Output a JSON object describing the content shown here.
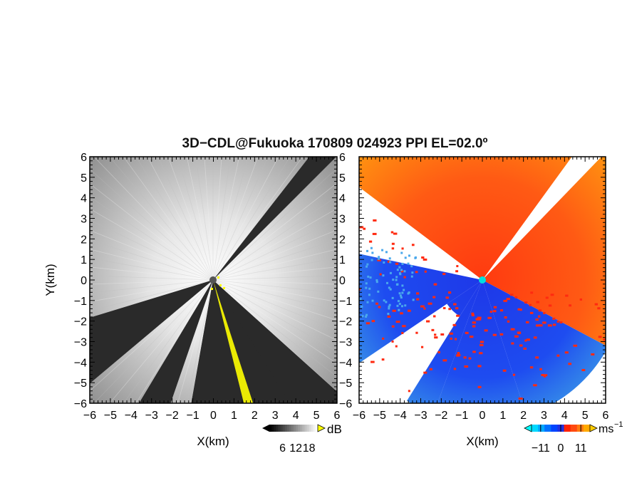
{
  "title": "3D−CDL@Fukuoka 170809 024923 PPI EL=02.0º",
  "chart_data": [
    {
      "type": "heatmap",
      "name": "reflectivity-ppi",
      "xlabel": "X(km)",
      "ylabel": "Y(km)",
      "xlim": [
        -6,
        6
      ],
      "ylim": [
        -6,
        6
      ],
      "xticks": [
        "−6",
        "−5",
        "−4",
        "−3",
        "−2",
        "−1",
        "0",
        "1",
        "2",
        "3",
        "4",
        "5",
        "6"
      ],
      "yticks": [
        "−6",
        "−5",
        "−4",
        "−3",
        "−2",
        "−1",
        "0",
        "1",
        "2",
        "3",
        "4",
        "5",
        "6"
      ],
      "colorbar": {
        "unit": "dB",
        "tick_labels": [
          "6",
          "12",
          "18"
        ],
        "tick_values": [
          6,
          12,
          18
        ],
        "range": [
          0,
          22
        ],
        "colors": [
          "#000000",
          "#ffffff",
          "#ffff00"
        ]
      },
      "radar_site": [
        0,
        0
      ],
      "blocked_sectors_deg": [
        [
          38,
          45
        ],
        [
          132,
          155
        ],
        [
          158,
          167
        ],
        [
          199,
          211
        ],
        [
          230,
          253
        ]
      ],
      "highlight_sector_deg": [
        [
          165,
          187
        ]
      ],
      "colors": {
        "background": "#d0d0d0",
        "blocked": "#2a2a2a",
        "highlight": "#ffff00",
        "site": "#555555"
      }
    },
    {
      "type": "heatmap",
      "name": "doppler-velocity-ppi",
      "xlabel": "X(km)",
      "ylabel": "Y(km)",
      "xlim": [
        -6,
        6
      ],
      "ylim": [
        -6,
        6
      ],
      "xticks": [
        "−6",
        "−5",
        "−4",
        "−3",
        "−2",
        "−1",
        "0",
        "1",
        "2",
        "3",
        "4",
        "5",
        "6"
      ],
      "yticks": [
        "−6",
        "−5",
        "−4",
        "−3",
        "−2",
        "−1",
        "0",
        "1",
        "2",
        "3",
        "4",
        "5",
        "6"
      ],
      "colorbar": {
        "unit": "ms",
        "unit_exp": "−1",
        "tick_labels": [
          "−11",
          "0",
          "11"
        ],
        "tick_values": [
          -11,
          0,
          11
        ],
        "range": [
          -16,
          16
        ],
        "colors": [
          "#00ffff",
          "#0044ff",
          "#ff2200",
          "#ffaa00"
        ]
      },
      "radar_site": [
        0,
        0
      ],
      "positive_sector_deg": [
        [
          -90,
          118
        ],
        [
          300,
          330
        ]
      ],
      "negative_sector_deg": [
        [
          125,
          236
        ],
        [
          260,
          290
        ]
      ],
      "no_data_sector_deg": [
        [
          236,
          258
        ],
        [
          290,
          300
        ]
      ],
      "colors": {
        "positive": "#ff5a14",
        "positive_far": "#ff9a10",
        "negative": "#1e4cf0",
        "negative_far": "#3c9ee6",
        "site": "#00e0e0"
      }
    }
  ]
}
